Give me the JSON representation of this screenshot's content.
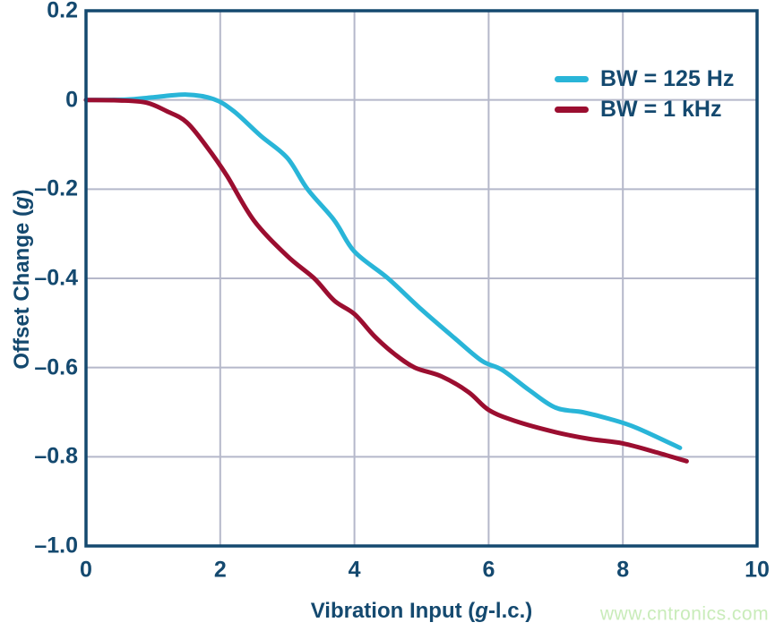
{
  "chart_data": {
    "type": "line",
    "title": "",
    "xlabel_parts": [
      {
        "text": "Vibration Input (",
        "italic": false
      },
      {
        "text": "g",
        "italic": true
      },
      {
        "text": "-l.c.)",
        "italic": false
      }
    ],
    "ylabel_parts": [
      {
        "text": "Offset Change (",
        "italic": false
      },
      {
        "text": "g",
        "italic": true
      },
      {
        "text": ")",
        "italic": false
      }
    ],
    "xlim": [
      0,
      10
    ],
    "ylim": [
      -1.0,
      0.2
    ],
    "grid": true,
    "x_ticks": {
      "values": [
        0,
        2,
        4,
        6,
        8,
        10
      ],
      "labels": [
        "0",
        "2",
        "4",
        "6",
        "8",
        "10"
      ]
    },
    "y_ticks": {
      "values": [
        0.2,
        0,
        -0.2,
        -0.4,
        -0.6,
        -0.8,
        -1.0
      ],
      "labels": [
        "0.2",
        "0",
        "–0.2",
        "–0.4",
        "–0.6",
        "–0.8",
        "–1.0"
      ]
    },
    "legend": {
      "position": "top-right",
      "entries": [
        {
          "label": "BW = 125 Hz",
          "color": "#29b5d8"
        },
        {
          "label": "BW = 1 kHz",
          "color": "#9b0e30"
        }
      ]
    },
    "series": [
      {
        "name": "BW = 125 Hz",
        "color": "#29b5d8",
        "points": [
          [
            0,
            0
          ],
          [
            0.6,
            0.001
          ],
          [
            1.0,
            0.006
          ],
          [
            1.5,
            0.012
          ],
          [
            1.9,
            0.002
          ],
          [
            2.2,
            -0.025
          ],
          [
            2.6,
            -0.08
          ],
          [
            3.0,
            -0.13
          ],
          [
            3.3,
            -0.2
          ],
          [
            3.7,
            -0.27
          ],
          [
            4.0,
            -0.34
          ],
          [
            4.5,
            -0.4
          ],
          [
            5.0,
            -0.47
          ],
          [
            5.5,
            -0.535
          ],
          [
            5.9,
            -0.585
          ],
          [
            6.2,
            -0.605
          ],
          [
            6.6,
            -0.65
          ],
          [
            7.0,
            -0.69
          ],
          [
            7.4,
            -0.7
          ],
          [
            7.8,
            -0.715
          ],
          [
            8.2,
            -0.735
          ],
          [
            8.85,
            -0.78
          ]
        ]
      },
      {
        "name": "BW = 1 kHz",
        "color": "#9b0e30",
        "points": [
          [
            0,
            0
          ],
          [
            0.5,
            -0.001
          ],
          [
            0.9,
            -0.006
          ],
          [
            1.2,
            -0.025
          ],
          [
            1.5,
            -0.05
          ],
          [
            1.8,
            -0.105
          ],
          [
            2.1,
            -0.17
          ],
          [
            2.5,
            -0.27
          ],
          [
            3.0,
            -0.35
          ],
          [
            3.4,
            -0.4
          ],
          [
            3.7,
            -0.45
          ],
          [
            4.0,
            -0.48
          ],
          [
            4.3,
            -0.53
          ],
          [
            4.6,
            -0.57
          ],
          [
            4.9,
            -0.6
          ],
          [
            5.3,
            -0.62
          ],
          [
            5.7,
            -0.655
          ],
          [
            6.0,
            -0.695
          ],
          [
            6.4,
            -0.72
          ],
          [
            7.0,
            -0.745
          ],
          [
            7.5,
            -0.76
          ],
          [
            8.0,
            -0.77
          ],
          [
            8.5,
            -0.79
          ],
          [
            8.95,
            -0.81
          ]
        ]
      }
    ],
    "colors": {
      "axis": "#14496f",
      "grid": "#b5b8ca",
      "text": "#14496f",
      "background": "#ffffff"
    }
  },
  "watermark": {
    "text": "www.cntronics.com",
    "color": "#c9ecba"
  }
}
